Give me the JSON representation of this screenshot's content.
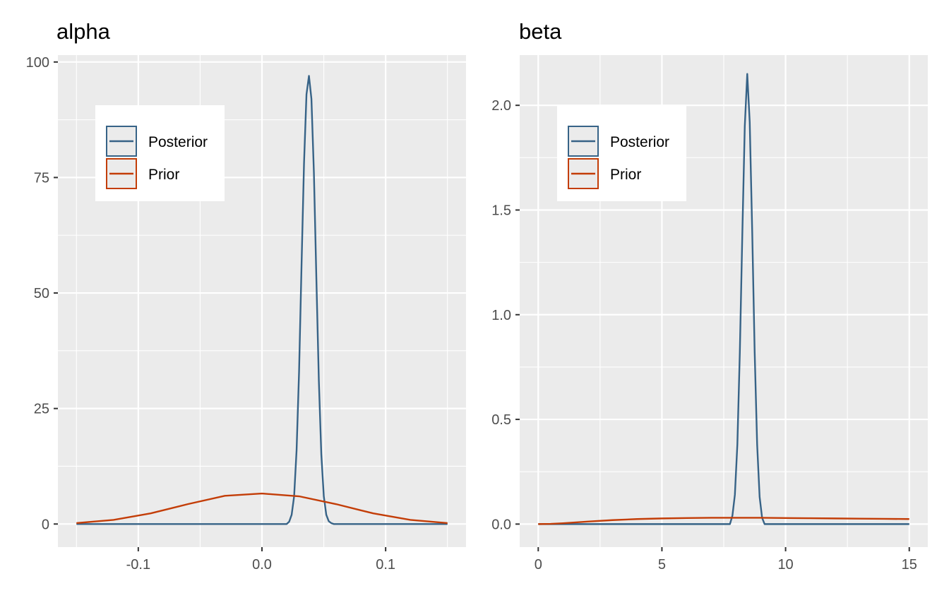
{
  "chart_data": [
    {
      "type": "line",
      "title": "alpha",
      "xlabel": "",
      "ylabel": "",
      "xlim": [
        -0.165,
        0.165
      ],
      "ylim": [
        -5,
        101.5
      ],
      "xticks": [
        -0.1,
        0.0,
        0.1
      ],
      "xtick_labels": [
        "-0.1",
        "0.0",
        "0.1"
      ],
      "yticks": [
        0,
        25,
        50,
        75,
        100
      ],
      "ytick_labels": [
        "0",
        "25",
        "50",
        "75",
        "100"
      ],
      "grid": true,
      "legend": {
        "position": "top-left",
        "entries": [
          "Posterior",
          "Prior"
        ]
      },
      "series": [
        {
          "name": "Posterior",
          "color": "#376387",
          "x": [
            -0.15,
            0.02,
            0.022,
            0.024,
            0.026,
            0.028,
            0.03,
            0.032,
            0.034,
            0.036,
            0.038,
            0.04,
            0.042,
            0.044,
            0.046,
            0.048,
            0.05,
            0.052,
            0.054,
            0.056,
            0.058,
            0.15
          ],
          "y": [
            0,
            0,
            0.5,
            2,
            6,
            16,
            33,
            56,
            78,
            93,
            97,
            92,
            76,
            53,
            31,
            15,
            6,
            2,
            0.6,
            0.2,
            0,
            0
          ]
        },
        {
          "name": "Prior",
          "color": "#c33d07",
          "x": [
            -0.15,
            -0.12,
            -0.09,
            -0.06,
            -0.03,
            0.0,
            0.03,
            0.06,
            0.09,
            0.12,
            0.15
          ],
          "y": [
            0.2,
            0.9,
            2.3,
            4.3,
            6.1,
            6.6,
            6.0,
            4.3,
            2.3,
            0.9,
            0.2
          ]
        }
      ]
    },
    {
      "type": "line",
      "title": "beta",
      "xlabel": "",
      "ylabel": "",
      "xlim": [
        -0.75,
        15.75
      ],
      "ylim": [
        -0.11,
        2.24
      ],
      "xticks": [
        0,
        5,
        10,
        15
      ],
      "xtick_labels": [
        "0",
        "5",
        "10",
        "15"
      ],
      "yticks": [
        0.0,
        0.5,
        1.0,
        1.5,
        2.0
      ],
      "ytick_labels": [
        "0.0",
        "0.5",
        "1.0",
        "1.5",
        "2.0"
      ],
      "grid": true,
      "legend": {
        "position": "top-left",
        "entries": [
          "Posterior",
          "Prior"
        ]
      },
      "series": [
        {
          "name": "Posterior",
          "color": "#376387",
          "x": [
            0,
            7.75,
            7.85,
            7.95,
            8.05,
            8.15,
            8.25,
            8.35,
            8.45,
            8.55,
            8.65,
            8.75,
            8.85,
            8.95,
            9.05,
            9.15,
            15
          ],
          "y": [
            0,
            0,
            0.04,
            0.14,
            0.38,
            0.82,
            1.38,
            1.9,
            2.15,
            1.92,
            1.4,
            0.82,
            0.38,
            0.13,
            0.03,
            0,
            0
          ]
        },
        {
          "name": "Prior",
          "color": "#c33d07",
          "x": [
            0,
            0.5,
            1,
            2,
            3,
            4,
            5,
            6,
            7,
            8,
            9,
            10,
            11,
            12,
            13,
            14,
            15
          ],
          "y": [
            0,
            0.001,
            0.004,
            0.012,
            0.019,
            0.024,
            0.027,
            0.029,
            0.03,
            0.03,
            0.03,
            0.029,
            0.028,
            0.027,
            0.026,
            0.025,
            0.024
          ]
        }
      ]
    }
  ]
}
